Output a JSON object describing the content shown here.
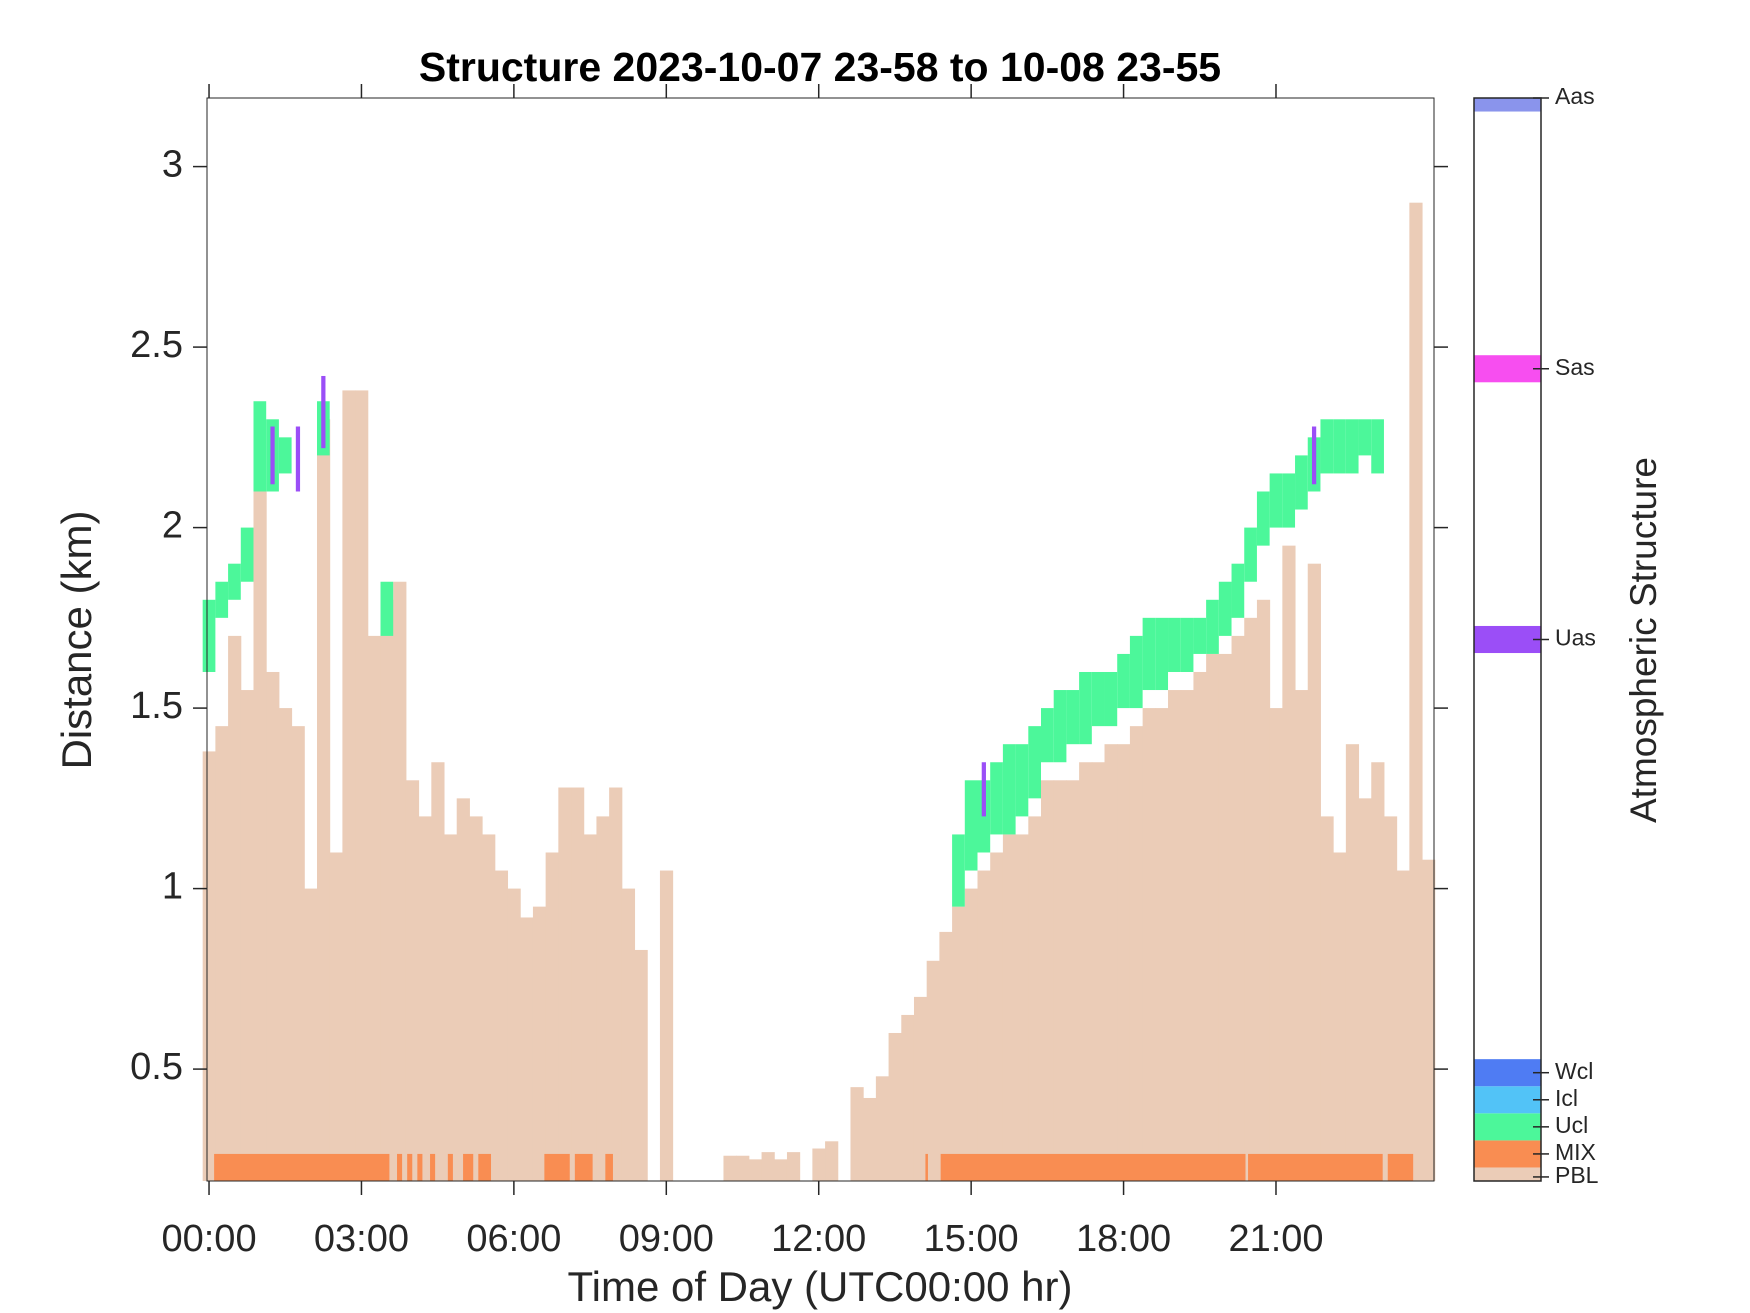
{
  "chart_data": {
    "type": "bar",
    "title": "Structure 2023-10-07 23-58 to 10-08 23-55",
    "xlabel": "Time of Day (UTC00:00 hr)",
    "ylabel": "Distance (km)",
    "xlim": [
      -0.04,
      24.11
    ],
    "xticks": [
      {
        "value": 0,
        "label": "00:00"
      },
      {
        "value": 3,
        "label": "03:00"
      },
      {
        "value": 6,
        "label": "06:00"
      },
      {
        "value": 9,
        "label": "09:00"
      },
      {
        "value": 12,
        "label": "12:00"
      },
      {
        "value": 15,
        "label": "15:00"
      },
      {
        "value": 18,
        "label": "18:00"
      },
      {
        "value": 21,
        "label": "21:00"
      }
    ],
    "ylim": [
      0.19,
      3.19
    ],
    "yticks": [
      0.5,
      1,
      1.5,
      2,
      2.5,
      3
    ],
    "series": [
      {
        "color": "#ebccb7",
        "x": [
          0,
          0.25,
          0.5,
          0.75,
          1,
          1.25,
          1.5,
          1.75,
          2,
          2.25,
          2.5,
          2.75,
          3,
          3.25,
          3.5,
          3.75,
          4,
          4.25,
          4.5,
          4.75,
          5,
          5.25,
          5.5,
          5.75,
          6,
          6.25,
          6.5,
          6.75,
          7,
          7.25,
          7.5,
          7.75,
          8,
          8.25,
          8.5,
          8.75,
          9,
          9.25,
          9.5,
          9.75,
          10,
          10.25,
          10.5,
          10.75,
          11,
          11.25,
          11.5,
          11.75,
          12,
          12.25,
          12.5,
          12.75,
          13,
          13.25,
          13.5,
          13.75,
          14,
          14.25,
          14.5,
          14.75,
          15,
          15.25,
          15.5,
          15.75,
          16,
          16.25,
          16.5,
          16.75,
          17,
          17.25,
          17.5,
          17.75,
          18,
          18.25,
          18.5,
          18.75,
          19,
          19.25,
          19.5,
          19.75,
          20,
          20.25,
          20.5,
          20.75,
          21,
          21.25,
          21.5,
          21.75,
          22,
          22.25,
          22.5,
          22.75,
          23,
          23.25,
          23.5,
          23.75,
          24
        ],
        "values": [
          1.38,
          1.45,
          1.7,
          1.55,
          2.1,
          1.6,
          1.5,
          1.45,
          1.0,
          2.3,
          1.1,
          2.38,
          2.38,
          1.7,
          1.8,
          1.85,
          1.3,
          1.2,
          1.35,
          1.15,
          1.25,
          1.2,
          1.15,
          1.05,
          1.0,
          0.92,
          0.95,
          1.1,
          1.28,
          1.28,
          1.15,
          1.2,
          1.28,
          1.0,
          0.83,
          null,
          1.05,
          null,
          null,
          null,
          null,
          0.26,
          0.26,
          0.25,
          0.27,
          0.25,
          0.27,
          null,
          0.28,
          0.3,
          null,
          0.45,
          0.42,
          0.48,
          0.6,
          0.65,
          0.7,
          0.8,
          0.88,
          0.95,
          1.0,
          1.05,
          1.1,
          1.15,
          1.15,
          1.2,
          1.3,
          1.3,
          1.3,
          1.35,
          1.35,
          1.4,
          1.4,
          1.45,
          1.5,
          1.5,
          1.55,
          1.55,
          1.6,
          1.65,
          1.65,
          1.7,
          1.75,
          1.8,
          1.5,
          1.95,
          1.55,
          1.9,
          1.2,
          1.1,
          1.4,
          1.25,
          1.35,
          1.2,
          1.05,
          2.9,
          1.08
        ]
      }
    ],
    "layers": [
      {
        "color": "#4cf79a",
        "x": [
          0,
          0.25,
          0.5,
          0.75,
          1,
          1.25,
          1.5,
          2.25,
          3.5,
          14.75,
          15,
          15.25,
          15.5,
          15.75,
          16,
          16.25,
          16.5,
          16.75,
          17,
          17.25,
          17.5,
          17.75,
          18,
          18.25,
          18.5,
          18.75,
          19,
          19.25,
          19.5,
          19.75,
          20,
          20.25,
          20.5,
          20.75,
          21,
          21.25,
          21.5,
          21.75,
          22,
          22.25,
          22.5,
          22.75,
          23
        ],
        "base": [
          1.6,
          1.75,
          1.8,
          1.85,
          2.1,
          2.1,
          2.15,
          2.2,
          1.7,
          0.95,
          1.05,
          1.1,
          1.15,
          1.15,
          1.2,
          1.25,
          1.35,
          1.35,
          1.4,
          1.4,
          1.45,
          1.45,
          1.5,
          1.5,
          1.55,
          1.55,
          1.6,
          1.6,
          1.65,
          1.65,
          1.7,
          1.75,
          1.85,
          1.95,
          2.0,
          2.0,
          2.05,
          2.1,
          2.15,
          2.15,
          2.15,
          2.2,
          2.15
        ],
        "top": [
          1.8,
          1.85,
          1.9,
          2.0,
          2.35,
          2.3,
          2.25,
          2.35,
          1.85,
          1.15,
          1.3,
          1.3,
          1.35,
          1.4,
          1.4,
          1.45,
          1.5,
          1.55,
          1.55,
          1.6,
          1.6,
          1.6,
          1.65,
          1.7,
          1.75,
          1.75,
          1.75,
          1.75,
          1.75,
          1.8,
          1.85,
          1.9,
          2.0,
          2.1,
          2.15,
          2.15,
          2.2,
          2.25,
          2.3,
          2.3,
          2.3,
          2.3,
          2.3
        ]
      },
      {
        "color": "#9b4ef7",
        "x": [
          1.25,
          1.75,
          2.25,
          15.25,
          21.75
        ],
        "base": [
          2.12,
          2.1,
          2.22,
          1.2,
          2.12
        ],
        "top": [
          2.28,
          2.28,
          2.42,
          1.35,
          2.28
        ]
      }
    ],
    "mix": {
      "color": "#f98d52",
      "top": 0.265,
      "intervals": [
        [
          0.1,
          3.55
        ],
        [
          3.7,
          3.8
        ],
        [
          3.9,
          4.0
        ],
        [
          4.1,
          4.2
        ],
        [
          4.35,
          4.45
        ],
        [
          4.7,
          4.8
        ],
        [
          5.0,
          5.2
        ],
        [
          5.3,
          5.55
        ],
        [
          6.6,
          7.1
        ],
        [
          7.2,
          7.55
        ],
        [
          7.8,
          7.95
        ],
        [
          14.1,
          14.15
        ],
        [
          14.4,
          20.4
        ],
        [
          20.45,
          23.1
        ],
        [
          23.2,
          23.7
        ]
      ]
    },
    "colorbar": {
      "title": "Atmospheric Structure",
      "lim": [
        0,
        40
      ],
      "items": [
        {
          "label": "PBL",
          "value": 0.15,
          "color": "#ebccb7"
        },
        {
          "label": "MIX",
          "value": 1,
          "color": "#f98d52"
        },
        {
          "label": "Ucl",
          "value": 2,
          "color": "#4cf79a"
        },
        {
          "label": "Icl",
          "value": 3,
          "color": "#52c3f7"
        },
        {
          "label": "Wcl",
          "value": 4,
          "color": "#4f7cf3"
        },
        {
          "label": "Uas",
          "value": 20,
          "color": "#9b4ef7"
        },
        {
          "label": "Sas",
          "value": 30,
          "color": "#f74ef0"
        },
        {
          "label": "Aas",
          "value": 40,
          "color": "#8a94ec"
        }
      ]
    }
  }
}
